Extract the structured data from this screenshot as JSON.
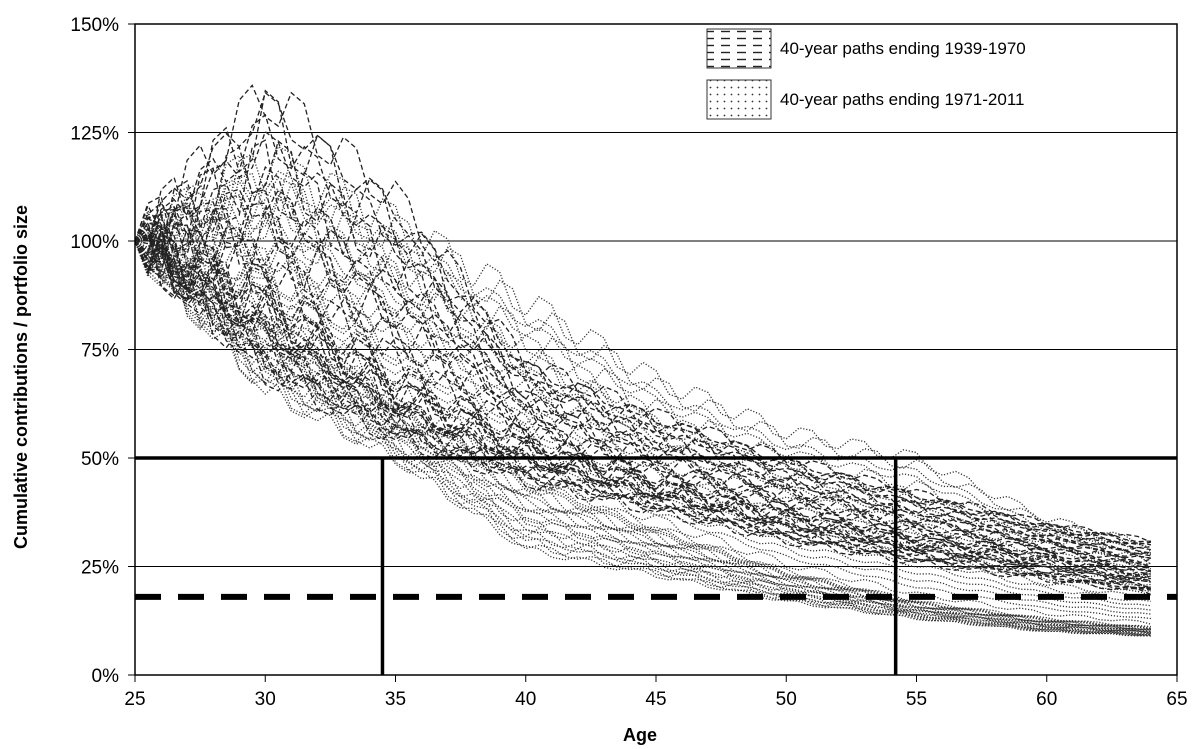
{
  "chart_data": {
    "type": "line",
    "title": "",
    "xlabel": "Age",
    "ylabel": "Cumulative contributions / portfolio size",
    "xlim": [
      25,
      65
    ],
    "ylim": [
      0,
      150
    ],
    "y_unit": "%",
    "x_ticks": [
      25,
      30,
      35,
      40,
      45,
      50,
      55,
      60,
      65
    ],
    "x_tick_labels": [
      "25",
      "30",
      "35",
      "40",
      "45",
      "50",
      "55",
      "60",
      "65"
    ],
    "y_ticks": [
      0,
      25,
      50,
      75,
      100,
      125,
      150
    ],
    "y_tick_labels": [
      "0%",
      "25%",
      "50%",
      "75%",
      "100%",
      "125%",
      "150%"
    ],
    "grid": "horizontal",
    "legend_position": "top-right",
    "series": [
      {
        "name": "40-year paths ending 1939-1970",
        "style": "dashed",
        "color": "#222222",
        "path_count": 32,
        "ages": [
          25,
          30,
          35,
          40,
          45,
          50,
          55,
          60,
          64
        ],
        "envelope_high": [
          100,
          134,
          110,
          72,
          60,
          50,
          42,
          35,
          31
        ],
        "typical": [
          100,
          88,
          68,
          54,
          45,
          38,
          32,
          28,
          24
        ],
        "envelope_low": [
          100,
          70,
          55,
          45,
          38,
          31,
          26,
          22,
          19
        ]
      },
      {
        "name": "40-year paths ending 1971-2011",
        "style": "dotted",
        "color": "#333333",
        "path_count": 41,
        "ages": [
          25,
          30,
          35,
          40,
          45,
          50,
          55,
          60,
          64
        ],
        "envelope_high": [
          100,
          118,
          104,
          86,
          68,
          56,
          50,
          36,
          30
        ],
        "typical": [
          100,
          84,
          63,
          46,
          34,
          24,
          17,
          13,
          11
        ],
        "envelope_low": [
          100,
          66,
          50,
          29,
          23,
          17,
          13,
          10,
          9
        ]
      }
    ],
    "reference_lines": [
      {
        "orientation": "horizontal",
        "value": 50,
        "style": "solid"
      },
      {
        "orientation": "horizontal",
        "value": 18,
        "style": "dashed"
      },
      {
        "orientation": "vertical",
        "value": 34.5,
        "style": "solid"
      },
      {
        "orientation": "vertical",
        "value": 54.2,
        "style": "solid"
      }
    ]
  }
}
